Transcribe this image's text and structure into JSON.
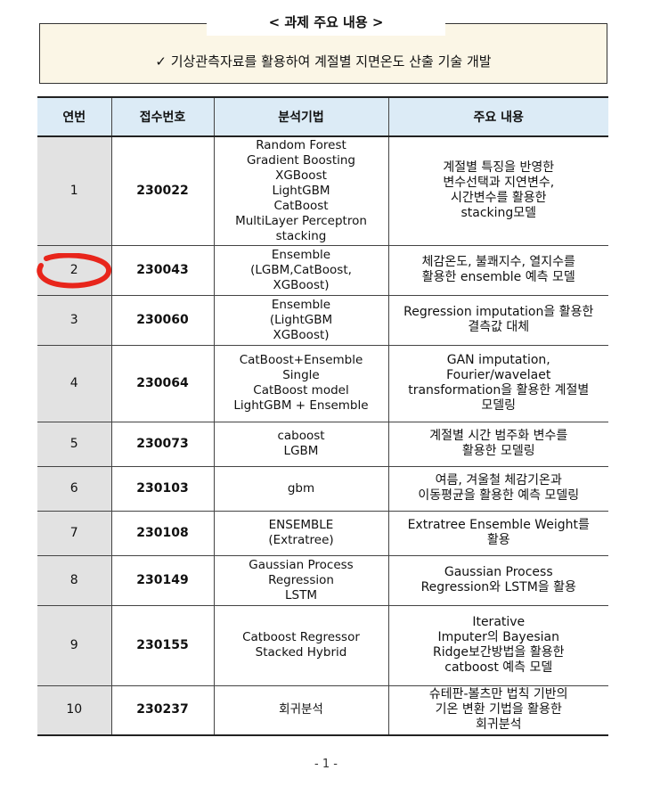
{
  "summary": {
    "title": "< 과제 주요 내용 >",
    "text": "✓ 기상관측자료를 활용하여 계절별 지면온도 산출 기술 개발"
  },
  "table": {
    "headers": [
      "연번",
      "접수번호",
      "분석기법",
      "주요 내용"
    ],
    "rows": [
      {
        "no": "1",
        "id": "230022",
        "methods": [
          "Random Forest",
          "Gradient Boosting",
          "XGBoost",
          "LightGBM",
          "CatBoost",
          "MultiLayer Perceptron",
          "stacking"
        ],
        "desc": [
          "계절별 특징을 반영한",
          "변수선택과 지연변수,",
          "시간변수를 활용한",
          "stacking모델"
        ]
      },
      {
        "no": "2",
        "id": "230043",
        "methods": [
          "Ensemble",
          "(LGBM,CatBoost,",
          "XGBoost)"
        ],
        "desc": [
          "체감온도, 불쾌지수, 열지수를",
          "활용한 ensemble 예측 모델"
        ]
      },
      {
        "no": "3",
        "id": "230060",
        "methods": [
          "Ensemble",
          "(LightGBM",
          "XGBoost)"
        ],
        "desc": [
          "Regression imputation을 활용한",
          "결측값 대체"
        ]
      },
      {
        "no": "4",
        "id": "230064",
        "methods": [
          "CatBoost+Ensemble",
          "Single",
          "CatBoost model",
          "LightGBM + Ensemble"
        ],
        "desc": [
          "GAN imputation,",
          "Fourier/wavelaet",
          "transformation을 활용한 계절별",
          "모델링"
        ]
      },
      {
        "no": "5",
        "id": "230073",
        "methods": [
          "caboost",
          "LGBM"
        ],
        "desc": [
          "계절별 시간 범주화 변수를",
          "활용한 모델링"
        ]
      },
      {
        "no": "6",
        "id": "230103",
        "methods": [
          "gbm"
        ],
        "desc": [
          "여름, 겨울철 체감기온과",
          "이동평균을 활용한 예측 모델링"
        ]
      },
      {
        "no": "7",
        "id": "230108",
        "methods": [
          "ENSEMBLE",
          "(Extratree)"
        ],
        "desc": [
          "Extratree Ensemble Weight를",
          "활용"
        ]
      },
      {
        "no": "8",
        "id": "230149",
        "methods": [
          "Gaussian Process",
          "Regression",
          "LSTM"
        ],
        "desc": [
          "Gaussian Process",
          "Regression와 LSTM을 활용"
        ]
      },
      {
        "no": "9",
        "id": "230155",
        "methods": [
          "Catboost Regressor",
          "Stacked Hybrid"
        ],
        "desc": [
          "Iterative",
          "Imputer의 Bayesian",
          "Ridge보간방법을 활용한",
          "catboost 예측 모델"
        ]
      },
      {
        "no": "10",
        "id": "230237",
        "methods": [
          "회귀분석"
        ],
        "desc": [
          "슈테판-볼츠만 법칙 기반의",
          "기온 변환 기법을 활용한",
          "회귀분석"
        ]
      }
    ]
  },
  "page_number": "- 1 -",
  "colors": {
    "summary_background": "#fbf6e6",
    "header_background": "#dcebf6",
    "number_column_background": "#e2e2e2",
    "annotation_red": "#e8251b"
  }
}
